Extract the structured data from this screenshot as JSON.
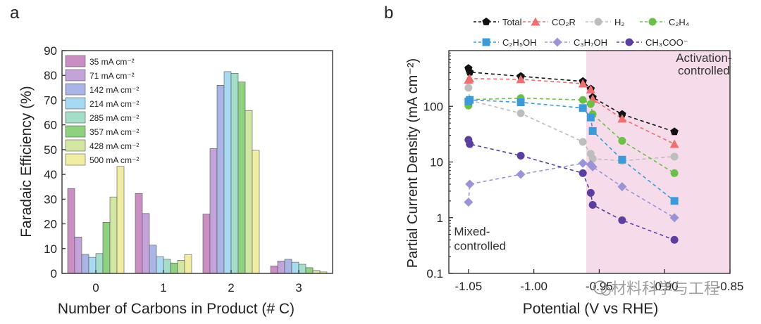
{
  "panel_labels": {
    "a": "a",
    "b": "b"
  },
  "watermark": "材料科学与工程",
  "chart_data": [
    {
      "type": "bar",
      "panel": "a",
      "xlabel": "Number of Carbons in Product (# C)",
      "ylabel": "Faradaic Efficiency (%)",
      "ylim": [
        0,
        90
      ],
      "yticks": [
        0,
        10,
        20,
        30,
        40,
        50,
        60,
        70,
        80,
        90
      ],
      "categories": [
        "0",
        "1",
        "2",
        "3"
      ],
      "legend": {
        "placement": "top-left"
      },
      "series": [
        {
          "name": "35 mA cm⁻²",
          "color": "#c98fc2",
          "values": [
            34.3,
            32.3,
            24.0,
            3.0
          ]
        },
        {
          "name": "71 mA cm⁻²",
          "color": "#c3a4d8",
          "values": [
            14.7,
            24.2,
            50.4,
            5.0
          ]
        },
        {
          "name": "142 mA cm⁻²",
          "color": "#aab5e6",
          "values": [
            7.7,
            11.4,
            76.0,
            5.7
          ]
        },
        {
          "name": "214 mA cm⁻²",
          "color": "#a6daf0",
          "values": [
            6.5,
            6.8,
            81.5,
            4.5
          ]
        },
        {
          "name": "285 mA cm⁻²",
          "color": "#a5dec8",
          "values": [
            8.0,
            5.7,
            80.8,
            3.7
          ]
        },
        {
          "name": "357 mA cm⁻²",
          "color": "#8fd17f",
          "values": [
            20.6,
            4.2,
            77.3,
            2.3
          ]
        },
        {
          "name": "428 mA cm⁻²",
          "color": "#d3e6a4",
          "values": [
            30.9,
            5.3,
            65.8,
            1.2
          ]
        },
        {
          "name": "500 mA cm⁻²",
          "color": "#f1eea3",
          "values": [
            43.2,
            7.6,
            49.7,
            0.6
          ]
        }
      ]
    },
    {
      "type": "line",
      "panel": "b",
      "xlabel": "Potential (V vs RHE)",
      "ylabel": "Partial Current Density (mA cm⁻²)",
      "xscale": "linear",
      "yscale": "log",
      "xlim": [
        -1.065,
        -0.85
      ],
      "ylim": [
        0.1,
        1000
      ],
      "xticks": [
        -1.05,
        -1.0,
        -0.95,
        -0.9,
        -0.85
      ],
      "xtick_labels": [
        "-1.05",
        "-1.00",
        "-0.95",
        "-0.90",
        "-0.85"
      ],
      "yticks": [
        0.1,
        1,
        10,
        100
      ],
      "ytick_labels": [
        "0.1",
        "1",
        "10",
        "100"
      ],
      "regions": [
        {
          "x_from": -0.96,
          "x_to": -0.85,
          "color": "#f6dcea"
        }
      ],
      "annotations": [
        {
          "text": "Activation-",
          "x": -0.87,
          "y": 630,
          "anchor": "middle"
        },
        {
          "text": "controlled",
          "x": -0.87,
          "y": 370,
          "anchor": "middle"
        },
        {
          "text": "Mixed-",
          "x": -1.061,
          "y": 0.48,
          "anchor": "start"
        },
        {
          "text": "controlled",
          "x": -1.061,
          "y": 0.265,
          "anchor": "start"
        }
      ],
      "legend": {
        "placement": "top"
      },
      "series": [
        {
          "name": "Total",
          "color": "#111111",
          "marker": "pentagon",
          "x": [
            -1.05,
            -1.049,
            -1.01,
            -0.9625,
            -0.9565,
            -0.955,
            -0.9325,
            -0.8925
          ],
          "y": [
            480,
            410,
            345,
            280,
            205,
            145,
            72,
            35
          ]
        },
        {
          "name": "CO₂R",
          "color": "#ee6f6f",
          "marker": "triangle",
          "x": [
            -1.05,
            -1.049,
            -1.01,
            -0.9625,
            -0.9565,
            -0.955,
            -0.9325,
            -0.8925
          ],
          "y": [
            300,
            315,
            305,
            255,
            200,
            135,
            60,
            21
          ]
        },
        {
          "name": "H₂",
          "color": "#bdbdbd",
          "marker": "circle",
          "x": [
            -1.05,
            -1.049,
            -1.01,
            -0.9625,
            -0.9565,
            -0.955,
            -0.9325,
            -0.8925
          ],
          "y": [
            215,
            128,
            75,
            23,
            14,
            11.5,
            10.5,
            12.5
          ]
        },
        {
          "name": "C₂H₄",
          "color": "#6cc04a",
          "marker": "circle",
          "x": [
            -1.05,
            -1.049,
            -1.01,
            -0.9625,
            -0.9565,
            -0.955,
            -0.9325,
            -0.8925
          ],
          "y": [
            103,
            132,
            140,
            130,
            110,
            72,
            24,
            6.3
          ]
        },
        {
          "name": "C₂H₅OH",
          "color": "#3d9ad8",
          "marker": "square",
          "x": [
            -1.05,
            -1.049,
            -1.01,
            -0.9625,
            -0.9565,
            -0.955,
            -0.9325,
            -0.8925
          ],
          "y": [
            122,
            130,
            118,
            93,
            63,
            36,
            11,
            2
          ]
        },
        {
          "name": "C₃H₇OH",
          "color": "#9a93d6",
          "marker": "diamond",
          "x": [
            -1.05,
            -1.049,
            -1.01,
            -0.9625,
            -0.9565,
            -0.955,
            -0.9325,
            -0.8925
          ],
          "y": [
            1.9,
            4.0,
            6.0,
            9.5,
            9.0,
            8.2,
            3.6,
            1.0
          ]
        },
        {
          "name": "CH₃COO⁻",
          "color": "#5b3f9e",
          "marker": "circle",
          "x": [
            -1.05,
            -1.049,
            -1.01,
            -0.9625,
            -0.9565,
            -0.955,
            -0.9325,
            -0.8925
          ],
          "y": [
            25,
            21,
            13,
            6.3,
            2.8,
            1.7,
            0.9,
            0.4
          ]
        }
      ]
    }
  ]
}
